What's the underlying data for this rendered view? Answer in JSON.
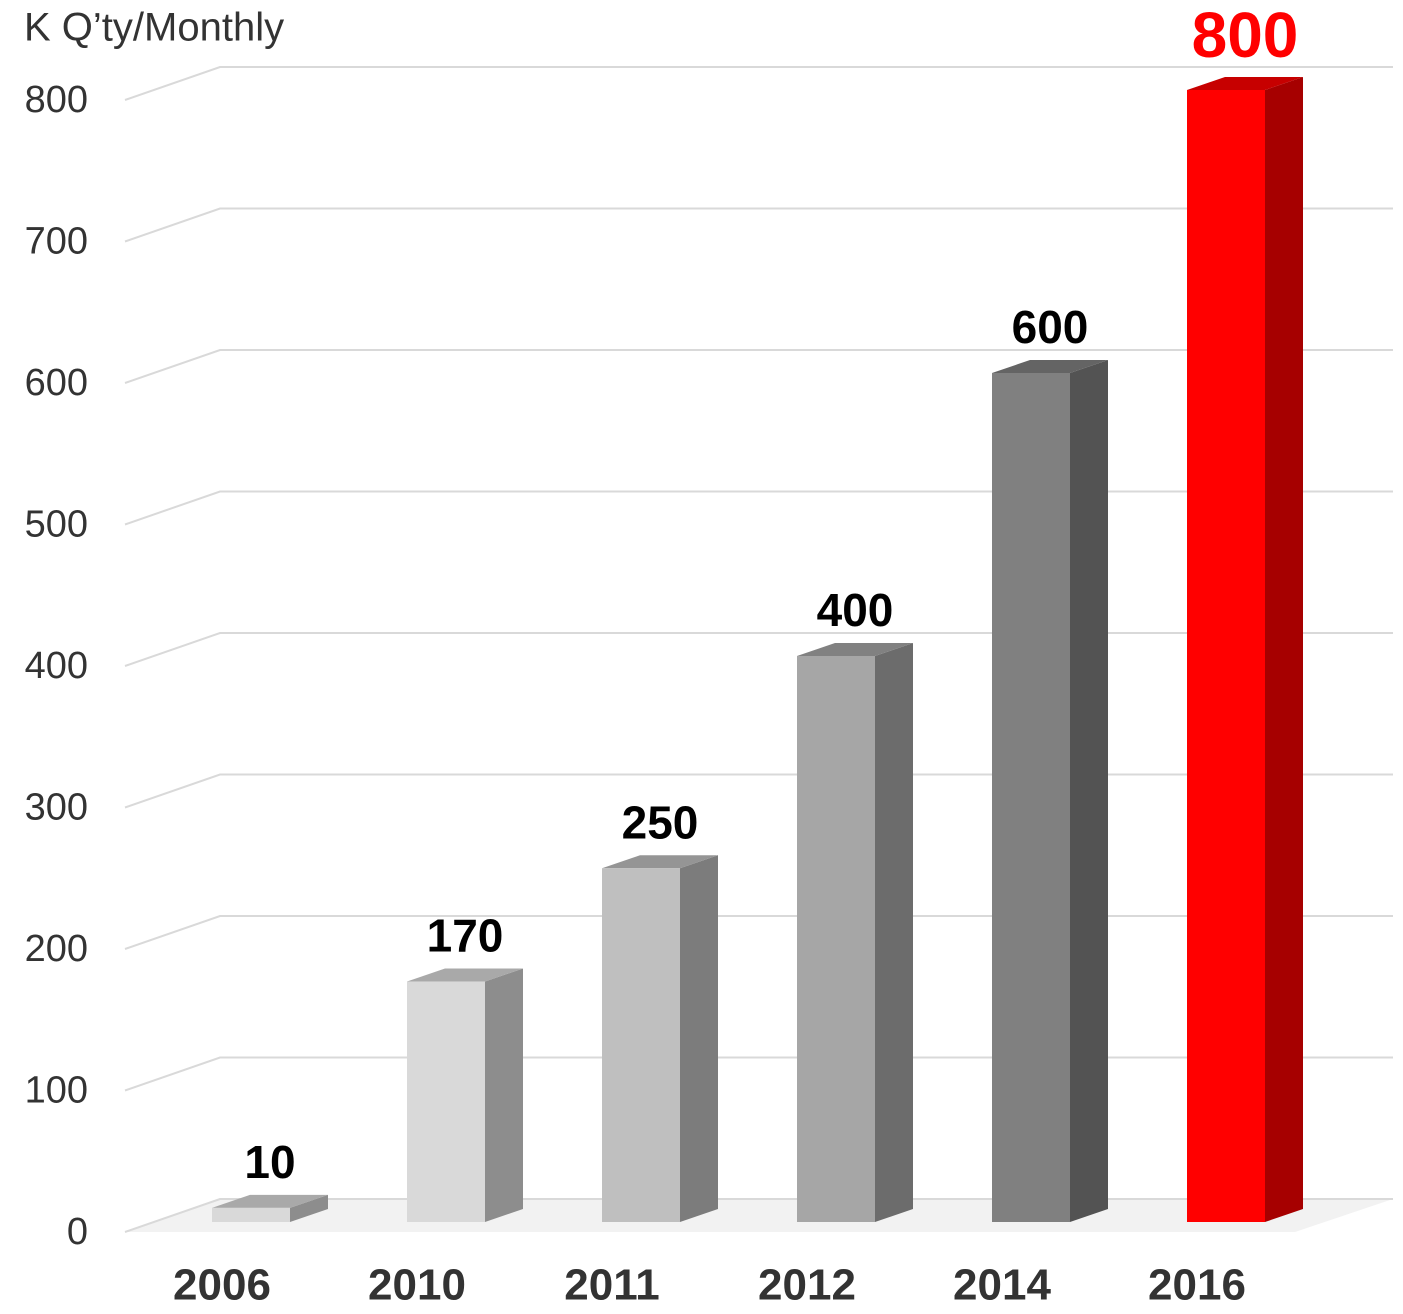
{
  "chart_data": {
    "type": "bar3d",
    "y_axis_label": "K Q’ty/Monthly",
    "categories": [
      "2006",
      "2010",
      "2011",
      "2012",
      "2014",
      "2016"
    ],
    "values": [
      10,
      170,
      250,
      400,
      600,
      800
    ],
    "colors": [
      "#d9d9d9",
      "#d9d9d9",
      "#bfbfbf",
      "#a6a6a6",
      "#808080",
      "#ff0000"
    ],
    "value_label_colors": [
      "#000000",
      "#000000",
      "#000000",
      "#000000",
      "#000000",
      "#ff0000"
    ],
    "ylim": [
      0,
      800
    ],
    "yticks": [
      0,
      100,
      200,
      300,
      400,
      500,
      600,
      700,
      800
    ],
    "grid": true
  }
}
